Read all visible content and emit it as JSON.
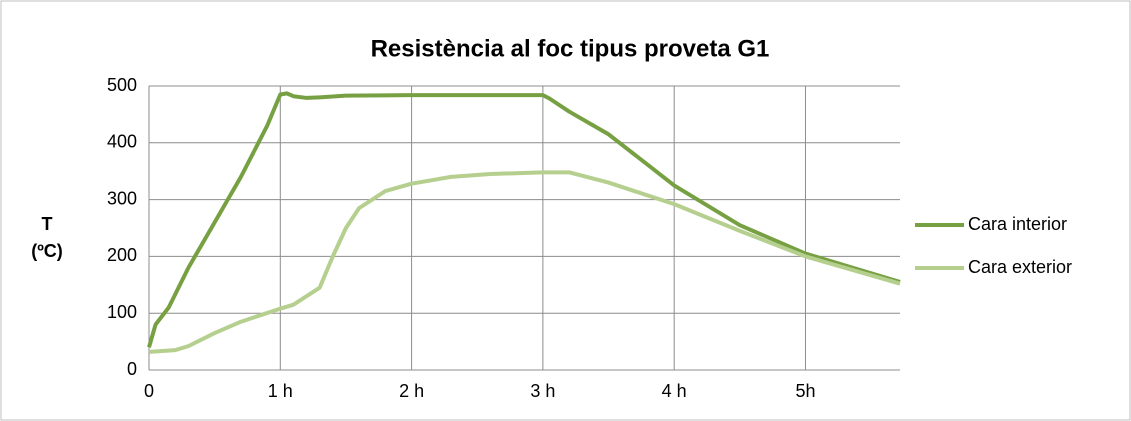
{
  "chart_data": {
    "type": "line",
    "title": "Resistència al foc tipus proveta G1",
    "ylabel": [
      "T",
      "(ºC)"
    ],
    "xlim": [
      0,
      5.72
    ],
    "xticks": [
      0,
      {
        "value": 1,
        "label": "1 h"
      },
      {
        "value": 2,
        "label": "2 h"
      },
      {
        "value": 3,
        "label": "3 h"
      },
      {
        "value": 4,
        "label": "4 h"
      },
      {
        "value": 5,
        "label": "5h"
      }
    ],
    "ylim": [
      0,
      500
    ],
    "yticks": [
      0,
      100,
      200,
      300,
      400,
      500
    ],
    "grid": true,
    "legend": "right",
    "series": [
      {
        "name": "Cara interior",
        "color": "#77a043",
        "x": [
          0,
          0.05,
          0.15,
          0.3,
          0.5,
          0.7,
          0.9,
          1.0,
          1.05,
          1.1,
          1.2,
          1.3,
          1.5,
          2,
          2.5,
          3,
          3.05,
          3.2,
          3.5,
          4,
          4.5,
          5,
          5.72
        ],
        "values": [
          40,
          80,
          110,
          180,
          260,
          340,
          430,
          485,
          487,
          482,
          479,
          480,
          483,
          484,
          484,
          484,
          478,
          455,
          415,
          325,
          255,
          205,
          155
        ]
      },
      {
        "name": "Cara exterior",
        "color": "#b5cf8e",
        "x": [
          0,
          0.2,
          0.3,
          0.5,
          0.7,
          1,
          1.1,
          1.3,
          1.4,
          1.5,
          1.6,
          1.8,
          2,
          2.3,
          2.6,
          3,
          3.2,
          3.5,
          4,
          4.5,
          5,
          5.72
        ],
        "values": [
          32,
          35,
          42,
          65,
          85,
          108,
          115,
          145,
          200,
          250,
          285,
          315,
          328,
          340,
          345,
          348,
          348,
          330,
          292,
          245,
          200,
          152
        ]
      }
    ]
  }
}
